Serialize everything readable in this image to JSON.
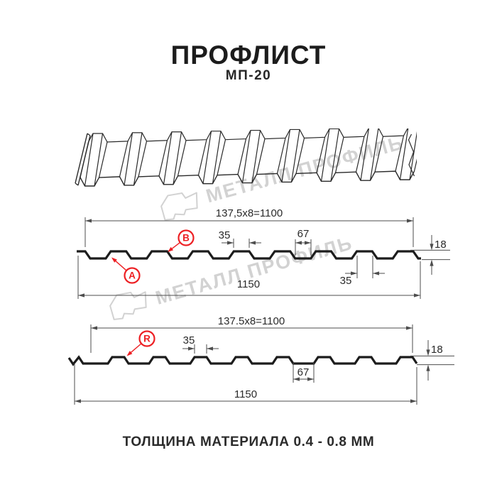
{
  "page": {
    "title": "ПРОФЛИСТ",
    "subtitle": "МП-20",
    "footer": "ТОЛЩИНА МАТЕРИАЛА 0.4 - 0.8 ММ"
  },
  "watermark": {
    "text": "МЕТАЛЛ ПРОФИЛЬ"
  },
  "colors": {
    "accent_red": "#ed2024",
    "profile_line": "#1c1c1c",
    "sketch_line": "#2a2a2a",
    "dim_line": "#4d4d4d",
    "label_text": "#2a2a2a",
    "watermark_gray": "#d2d2d2"
  },
  "drawing1": {
    "pitch_label": "137,5x8=1100",
    "total_width": "1150",
    "rib_top_width": "35",
    "valley_width": "67",
    "rib_bottom_width": "35",
    "height": "18",
    "point_a": "A",
    "point_b": "B"
  },
  "drawing2": {
    "pitch_label": "137.5x8=1100",
    "total_width": "1150",
    "rib_top_width": "35",
    "valley_width": "67",
    "height": "18",
    "point_r": "R"
  }
}
